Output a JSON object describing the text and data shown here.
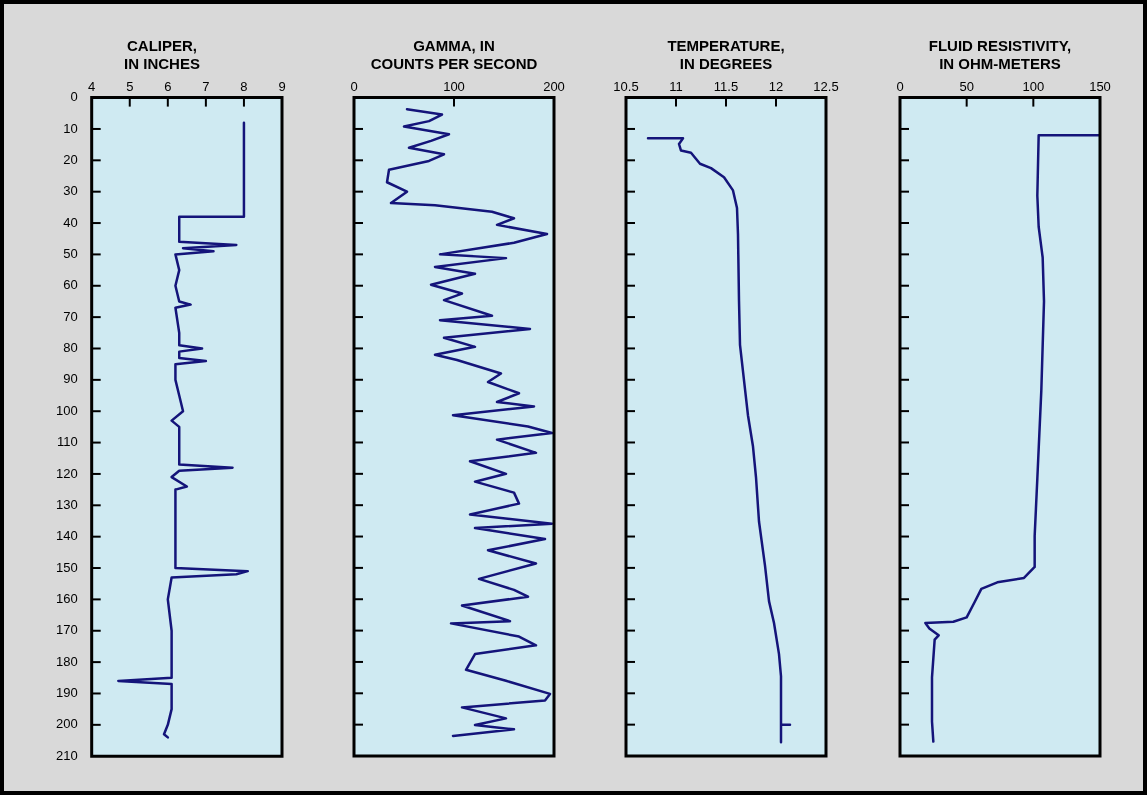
{
  "chart_data": [
    {
      "type": "line",
      "title": "CALIPER,\nIN INCHES",
      "xlim": [
        4,
        9
      ],
      "xticks": [
        4,
        5,
        6,
        7,
        8,
        9
      ],
      "ylim": [
        210,
        0
      ],
      "yticks": [
        0,
        10,
        20,
        30,
        40,
        50,
        60,
        70,
        80,
        90,
        100,
        110,
        120,
        130,
        140,
        150,
        160,
        170,
        180,
        190,
        200,
        210
      ],
      "grid": false,
      "legend": false,
      "marker": "none",
      "series": [
        {
          "color": "#14147a",
          "x": [
            8.0,
            8.0,
            6.3,
            6.3,
            7.8,
            6.4,
            7.2,
            6.2,
            6.3,
            6.2,
            6.3,
            6.6,
            6.2,
            6.3,
            6.3,
            6.9,
            6.3,
            6.3,
            7.0,
            6.2,
            6.2,
            6.3,
            6.4,
            6.1,
            6.3,
            6.3,
            7.7,
            6.3,
            6.1,
            6.5,
            6.2,
            6.2,
            8.1,
            7.8,
            6.1,
            6.0,
            6.1,
            6.1,
            4.7,
            6.1,
            6.1,
            6.0,
            5.9,
            6.0
          ],
          "values": [
            8,
            38,
            38,
            46,
            47,
            48,
            49,
            50,
            55,
            60,
            65,
            66,
            67,
            75,
            79,
            80,
            81,
            83,
            84,
            85,
            90,
            95,
            100,
            103,
            105,
            117,
            118,
            119,
            121,
            124,
            125,
            150,
            151,
            152,
            153,
            160,
            170,
            185,
            186,
            187,
            195,
            200,
            203,
            204
          ]
        }
      ]
    },
    {
      "type": "line",
      "title": "GAMMA, IN\nCOUNTS PER SECOND",
      "xlim": [
        0,
        200
      ],
      "xticks": [
        0,
        100,
        200
      ],
      "ylim": [
        210,
        0
      ],
      "yticks": [
        0,
        10,
        20,
        30,
        40,
        50,
        60,
        70,
        80,
        90,
        100,
        110,
        120,
        130,
        140,
        150,
        160,
        170,
        180,
        190,
        200,
        210
      ],
      "grid": false,
      "legend": false,
      "marker": "none",
      "tick_labels": "x",
      "series": [
        {
          "color": "#14147a",
          "x": [
            53,
            88,
            75,
            50,
            95,
            77,
            55,
            90,
            75,
            35,
            33,
            53,
            37,
            81,
            138,
            160,
            143,
            193,
            160,
            86,
            152,
            81,
            121,
            77,
            108,
            90,
            138,
            86,
            176,
            90,
            121,
            81,
            103,
            147,
            134,
            165,
            143,
            180,
            99,
            174,
            198,
            143,
            182,
            116,
            152,
            121,
            160,
            165,
            116,
            198,
            121,
            191,
            134,
            182,
            125,
            160,
            174,
            108,
            156,
            97,
            165,
            182,
            121,
            112,
            152,
            196,
            191,
            108,
            152,
            121,
            160,
            99
          ],
          "values": [
            3.7,
            5.4,
            7.5,
            9.2,
            11.7,
            13.8,
            16,
            18.1,
            20.2,
            23,
            27,
            30,
            33.6,
            34.3,
            36.4,
            38.5,
            40.6,
            43.5,
            46.3,
            50,
            51.2,
            54,
            56.2,
            59.7,
            62.5,
            64.6,
            69.6,
            71,
            73.8,
            76.6,
            79.5,
            82,
            83.7,
            88,
            90.7,
            94.3,
            97.1,
            98.5,
            101.3,
            104.9,
            107,
            109.1,
            113.3,
            116,
            120,
            122.5,
            126,
            129.5,
            133,
            135.9,
            137.3,
            140.8,
            144.4,
            148.6,
            153.5,
            157,
            159.2,
            162,
            167,
            167.7,
            171.9,
            174.7,
            177.5,
            182.5,
            186,
            190.2,
            192.3,
            194.5,
            198,
            200.1,
            201.5,
            203.6
          ]
        }
      ]
    },
    {
      "type": "line",
      "title": "TEMPERATURE,\nIN DEGREES",
      "xlim": [
        10.5,
        12.5
      ],
      "xticks": [
        10.5,
        11,
        11.5,
        12,
        12.5
      ],
      "ylim": [
        210,
        0
      ],
      "yticks": [
        0,
        10,
        20,
        30,
        40,
        50,
        60,
        70,
        80,
        90,
        100,
        110,
        120,
        130,
        140,
        150,
        160,
        170,
        180,
        190,
        200,
        210
      ],
      "grid": false,
      "legend": false,
      "marker": "none",
      "tick_labels": "x",
      "series": [
        {
          "color": "#14147a",
          "x": [
            10.72,
            11.07,
            11.03,
            11.05,
            11.15,
            11.24,
            11.35,
            11.48,
            11.57,
            11.61,
            11.62,
            11.63,
            11.64,
            11.69,
            11.72,
            11.77,
            11.8,
            11.83,
            11.89,
            11.93,
            11.98,
            12.03,
            12.05,
            12.05,
            12.14,
            12.05,
            12.05
          ],
          "values": [
            13,
            13,
            14.8,
            16.9,
            17.6,
            21.1,
            22.5,
            25.4,
            29.6,
            35.2,
            43.7,
            64.8,
            78.9,
            93,
            101.4,
            111.3,
            121.1,
            135.2,
            149.3,
            160.6,
            167.6,
            177.5,
            184.6,
            200,
            200,
            200,
            205.6
          ]
        }
      ]
    },
    {
      "type": "line",
      "title": "FLUID RESISTIVITY,\nIN OHM-METERS",
      "xlim": [
        0,
        150
      ],
      "xticks": [
        0,
        50,
        100,
        150
      ],
      "ylim": [
        210,
        0
      ],
      "yticks": [
        0,
        10,
        20,
        30,
        40,
        50,
        60,
        70,
        80,
        90,
        100,
        110,
        120,
        130,
        140,
        150,
        160,
        170,
        180,
        190,
        200,
        210
      ],
      "grid": false,
      "legend": false,
      "marker": "none",
      "tick_labels": "x",
      "series": [
        {
          "color": "#14147a",
          "x": [
            150,
            104,
            103,
            104,
            107,
            108,
            106,
            103,
            101,
            101,
            93,
            73,
            61,
            56,
            50,
            40,
            19,
            22,
            29,
            26,
            24,
            24,
            25
          ],
          "values": [
            12,
            12,
            31.3,
            41.2,
            51,
            65,
            93.3,
            121.5,
            139.8,
            149.7,
            153.2,
            154.6,
            156.7,
            160.9,
            165.8,
            167.2,
            167.6,
            169.3,
            171.5,
            172.9,
            184.9,
            199,
            205.4
          ]
        }
      ]
    }
  ]
}
